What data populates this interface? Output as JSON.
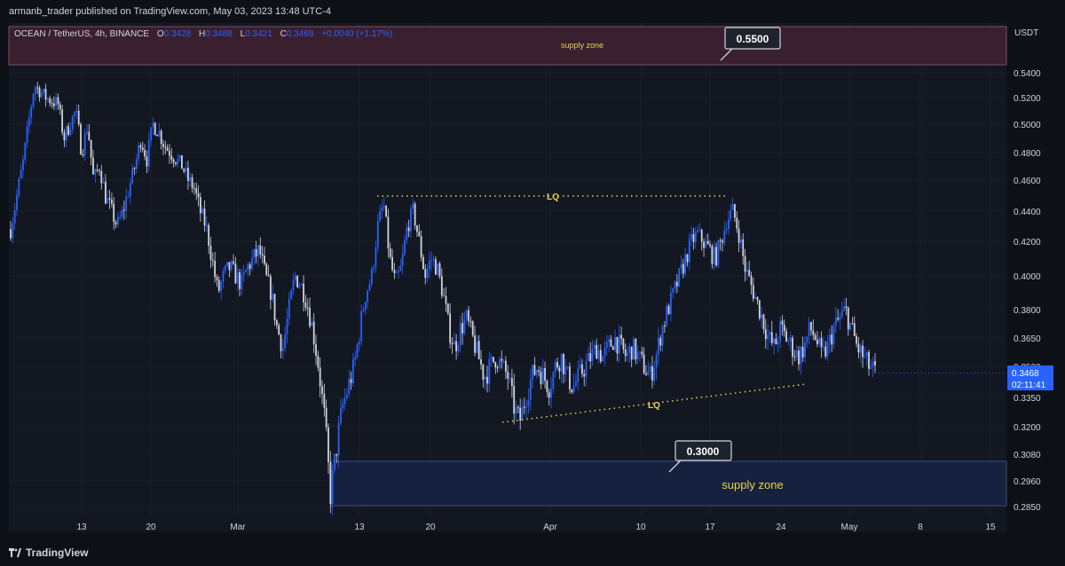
{
  "header": {
    "published_by": "armanb_trader published on TradingView.com, May 03, 2023 13:48 UTC-4"
  },
  "legend": {
    "symbol": "OCEAN / TetherUS, 4h, BINANCE",
    "open_label": "O",
    "open": "0.3428",
    "high_label": "H",
    "high": "0.3488",
    "low_label": "L",
    "low": "0.3421",
    "close_label": "C",
    "close": "0.3468",
    "change": "+0.0040 (+1.17%)"
  },
  "footer": {
    "brand": "TradingView"
  },
  "colors": {
    "background": "#131722",
    "candle_up": "#2962ff",
    "candle_down": "#d1d4dc",
    "supply_top_fill": "#3a1f2e",
    "supply_bottom_fill": "#16213f",
    "annotation_yellow": "#e8d44d",
    "price_tag": "#2962ff"
  },
  "chart_data": {
    "type": "candlestick",
    "currency": "USDT",
    "y_ticks": [
      "0.5400",
      "0.5200",
      "0.5000",
      "0.4800",
      "0.4600",
      "0.4400",
      "0.4200",
      "0.4000",
      "0.3800",
      "0.3650",
      "0.3500",
      "0.3350",
      "0.3200",
      "0.3080",
      "0.2960",
      "0.2850"
    ],
    "x_ticks": [
      "13",
      "20",
      "Mar",
      "13",
      "20",
      "Apr",
      "10",
      "17",
      "24",
      "May",
      "8",
      "15"
    ],
    "last_price": "0.3468",
    "countdown": "02:11:41",
    "annotations": {
      "top_zone_label": "supply zone",
      "top_callout": "0.5500",
      "bottom_zone_label": "supply zone",
      "bottom_callout": "0.3000",
      "lq_top": "LQ",
      "lq_bottom": "LQ"
    },
    "close_path": [
      [
        0,
        0.428
      ],
      [
        2,
        0.47
      ],
      [
        4,
        0.53
      ],
      [
        6,
        0.52
      ],
      [
        8,
        0.515
      ],
      [
        9,
        0.49
      ],
      [
        10,
        0.5
      ],
      [
        11,
        0.51
      ],
      [
        12,
        0.48
      ],
      [
        13,
        0.5
      ],
      [
        14,
        0.46
      ],
      [
        15,
        0.47
      ],
      [
        16,
        0.45
      ],
      [
        17,
        0.44
      ],
      [
        18,
        0.43
      ],
      [
        19,
        0.44
      ],
      [
        20,
        0.455
      ],
      [
        21,
        0.47
      ],
      [
        22,
        0.49
      ],
      [
        23,
        0.475
      ],
      [
        24,
        0.5
      ],
      [
        25,
        0.495
      ],
      [
        26,
        0.485
      ],
      [
        27,
        0.48
      ],
      [
        28,
        0.475
      ],
      [
        29,
        0.47
      ],
      [
        30,
        0.46
      ],
      [
        31,
        0.455
      ],
      [
        32,
        0.44
      ],
      [
        33,
        0.43
      ],
      [
        34,
        0.41
      ],
      [
        35,
        0.39
      ],
      [
        36,
        0.4
      ],
      [
        37,
        0.405
      ],
      [
        38,
        0.4
      ],
      [
        39,
        0.395
      ],
      [
        40,
        0.405
      ],
      [
        41,
        0.41
      ],
      [
        42,
        0.415
      ],
      [
        43,
        0.4
      ],
      [
        44,
        0.39
      ],
      [
        45,
        0.37
      ],
      [
        46,
        0.36
      ],
      [
        47,
        0.38
      ],
      [
        48,
        0.4
      ],
      [
        49,
        0.395
      ],
      [
        50,
        0.385
      ],
      [
        51,
        0.37
      ],
      [
        52,
        0.35
      ],
      [
        53,
        0.325
      ],
      [
        54,
        0.29
      ],
      [
        55,
        0.31
      ],
      [
        56,
        0.33
      ],
      [
        57,
        0.34
      ],
      [
        58,
        0.35
      ],
      [
        59,
        0.37
      ],
      [
        60,
        0.39
      ],
      [
        61,
        0.4
      ],
      [
        62,
        0.43
      ],
      [
        63,
        0.445
      ],
      [
        64,
        0.41
      ],
      [
        65,
        0.395
      ],
      [
        66,
        0.405
      ],
      [
        67,
        0.43
      ],
      [
        68,
        0.44
      ],
      [
        69,
        0.42
      ],
      [
        70,
        0.4
      ],
      [
        71,
        0.41
      ],
      [
        72,
        0.405
      ],
      [
        73,
        0.39
      ],
      [
        74,
        0.37
      ],
      [
        75,
        0.36
      ],
      [
        76,
        0.37
      ],
      [
        77,
        0.375
      ],
      [
        78,
        0.365
      ],
      [
        79,
        0.355
      ],
      [
        80,
        0.345
      ],
      [
        81,
        0.35
      ],
      [
        82,
        0.355
      ],
      [
        83,
        0.35
      ],
      [
        84,
        0.345
      ],
      [
        85,
        0.33
      ],
      [
        86,
        0.323
      ],
      [
        87,
        0.335
      ],
      [
        88,
        0.345
      ],
      [
        89,
        0.35
      ],
      [
        90,
        0.345
      ],
      [
        91,
        0.34
      ],
      [
        92,
        0.35
      ],
      [
        93,
        0.355
      ],
      [
        94,
        0.345
      ],
      [
        95,
        0.34
      ],
      [
        96,
        0.345
      ],
      [
        97,
        0.35
      ],
      [
        98,
        0.355
      ],
      [
        99,
        0.36
      ],
      [
        100,
        0.355
      ],
      [
        101,
        0.36
      ],
      [
        102,
        0.365
      ],
      [
        103,
        0.36
      ],
      [
        104,
        0.355
      ],
      [
        105,
        0.36
      ],
      [
        106,
        0.355
      ],
      [
        107,
        0.35
      ],
      [
        108,
        0.345
      ],
      [
        109,
        0.355
      ],
      [
        110,
        0.37
      ],
      [
        111,
        0.38
      ],
      [
        112,
        0.39
      ],
      [
        113,
        0.4
      ],
      [
        114,
        0.41
      ],
      [
        115,
        0.42
      ],
      [
        116,
        0.425
      ],
      [
        117,
        0.42
      ],
      [
        118,
        0.415
      ],
      [
        119,
        0.41
      ],
      [
        120,
        0.42
      ],
      [
        121,
        0.435
      ],
      [
        122,
        0.44
      ],
      [
        123,
        0.425
      ],
      [
        124,
        0.405
      ],
      [
        125,
        0.395
      ],
      [
        126,
        0.385
      ],
      [
        127,
        0.375
      ],
      [
        128,
        0.365
      ],
      [
        129,
        0.36
      ],
      [
        130,
        0.37
      ],
      [
        131,
        0.365
      ],
      [
        132,
        0.36
      ],
      [
        133,
        0.355
      ],
      [
        134,
        0.36
      ],
      [
        135,
        0.37
      ],
      [
        136,
        0.365
      ],
      [
        137,
        0.355
      ],
      [
        138,
        0.36
      ],
      [
        139,
        0.37
      ],
      [
        140,
        0.375
      ],
      [
        141,
        0.38
      ],
      [
        142,
        0.37
      ],
      [
        143,
        0.36
      ],
      [
        144,
        0.355
      ],
      [
        145,
        0.35
      ],
      [
        146,
        0.347
      ]
    ]
  }
}
